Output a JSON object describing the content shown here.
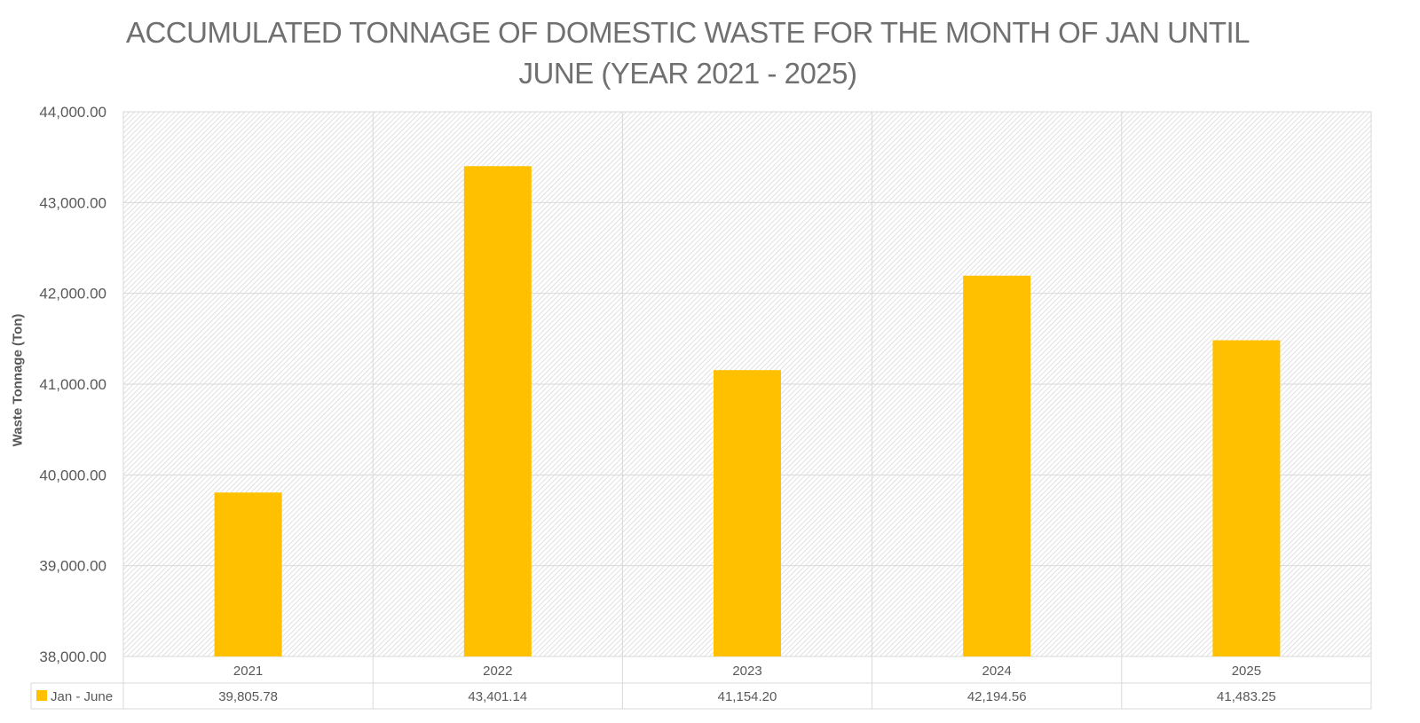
{
  "chart_data": {
    "type": "bar",
    "title": "ACCUMULATED TONNAGE OF DOMESTIC WASTE FOR THE MONTH OF JAN UNTIL JUNE (YEAR 2021 - 2025)",
    "title_lines": [
      "ACCUMULATED TONNAGE OF DOMESTIC WASTE FOR THE MONTH OF JAN UNTIL",
      "JUNE (YEAR 2021 - 2025)"
    ],
    "xlabel": "",
    "ylabel": "Waste Tonnage (Ton)",
    "ylim": [
      38000,
      44000
    ],
    "yticks": [
      "38,000.00",
      "39,000.00",
      "40,000.00",
      "41,000.00",
      "42,000.00",
      "43,000.00",
      "44,000.00"
    ],
    "categories": [
      "2021",
      "2022",
      "2023",
      "2024",
      "2025"
    ],
    "series": [
      {
        "name": "Jan - June",
        "color": "#FFC000",
        "values": [
          39805.78,
          43401.14,
          41154.2,
          42194.56,
          41483.25
        ],
        "labels": [
          "39,805.78",
          "43,401.14",
          "41,154.20",
          "42,194.56",
          "41,483.25"
        ]
      }
    ],
    "grid": true,
    "legend": "data-table"
  }
}
